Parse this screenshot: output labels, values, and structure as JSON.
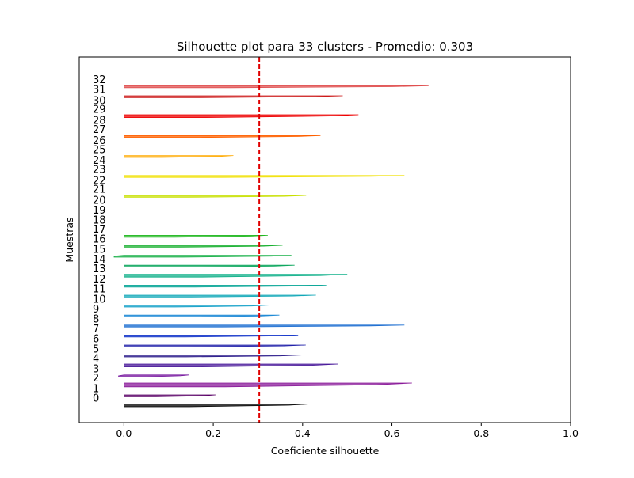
{
  "chart_data": {
    "type": "bar",
    "title": "Silhouette plot para 33 clusters - Promedio: 0.303",
    "xlabel": "Coeficiente silhouette",
    "ylabel": "Muestras",
    "xlim": [
      -0.1,
      1.0
    ],
    "xticks": [
      "0.0",
      "0.2",
      "0.4",
      "0.6",
      "0.8",
      "1.0"
    ],
    "grid": false,
    "average_silhouette": 0.303,
    "average_line_color": "#e00000",
    "clusters": [
      {
        "label": "0",
        "size": 3,
        "max": 0.42,
        "min": 0.0,
        "color": "#000000"
      },
      {
        "label": "1",
        "size": 2,
        "max": 0.205,
        "min": 0.0,
        "color": "#5a0066"
      },
      {
        "label": "2",
        "size": 4,
        "max": 0.645,
        "min": 0.0,
        "color": "#8a1a99"
      },
      {
        "label": "3",
        "size": 2,
        "max": 0.145,
        "min": -0.012,
        "color": "#7b1fa2"
      },
      {
        "label": "4",
        "size": 3,
        "max": 0.48,
        "min": 0.0,
        "color": "#4a1a9a"
      },
      {
        "label": "5",
        "size": 2,
        "max": 0.398,
        "min": 0.0,
        "color": "#2a1a8a"
      },
      {
        "label": "6",
        "size": 2,
        "max": 0.407,
        "min": 0.0,
        "color": "#2222aa"
      },
      {
        "label": "7",
        "size": 2,
        "max": 0.39,
        "min": 0.0,
        "color": "#1e3ecc"
      },
      {
        "label": "8",
        "size": 2,
        "max": 0.628,
        "min": 0.0,
        "color": "#1f6fd1"
      },
      {
        "label": "9",
        "size": 2,
        "max": 0.348,
        "min": 0.0,
        "color": "#1f8ad6"
      },
      {
        "label": "10",
        "size": 2,
        "max": 0.325,
        "min": 0.0,
        "color": "#13a0c8"
      },
      {
        "label": "11",
        "size": 2,
        "max": 0.43,
        "min": 0.0,
        "color": "#12a8b8"
      },
      {
        "label": "12",
        "size": 2,
        "max": 0.453,
        "min": 0.0,
        "color": "#10a89a"
      },
      {
        "label": "13",
        "size": 3,
        "max": 0.5,
        "min": 0.0,
        "color": "#10b08a"
      },
      {
        "label": "14",
        "size": 2,
        "max": 0.382,
        "min": 0.0,
        "color": "#10a860"
      },
      {
        "label": "15",
        "size": 2,
        "max": 0.375,
        "min": -0.022,
        "color": "#18b048"
      },
      {
        "label": "16",
        "size": 2,
        "max": 0.355,
        "min": 0.0,
        "color": "#18b030"
      },
      {
        "label": "17",
        "size": 2,
        "max": 0.322,
        "min": 0.0,
        "color": "#20b820"
      },
      {
        "label": "18",
        "size": 0,
        "max": 0.0,
        "min": 0.0,
        "color": "#66cc00"
      },
      {
        "label": "19",
        "size": 0,
        "max": 0.0,
        "min": 0.0,
        "color": "#88d400"
      },
      {
        "label": "20",
        "size": 0,
        "max": 0.0,
        "min": 0.0,
        "color": "#aadd00"
      },
      {
        "label": "21",
        "size": 2,
        "max": 0.408,
        "min": 0.0,
        "color": "#c8e000"
      },
      {
        "label": "22",
        "size": 0,
        "max": 0.0,
        "min": 0.0,
        "color": "#dde000"
      },
      {
        "label": "23",
        "size": 2,
        "max": 0.628,
        "min": 0.0,
        "color": "#f0e000"
      },
      {
        "label": "24",
        "size": 0,
        "max": 0.0,
        "min": 0.0,
        "color": "#f8d000"
      },
      {
        "label": "25",
        "size": 2,
        "max": 0.245,
        "min": 0.0,
        "color": "#ffaa00"
      },
      {
        "label": "26",
        "size": 0,
        "max": 0.0,
        "min": 0.0,
        "color": "#ff8800"
      },
      {
        "label": "27",
        "size": 2,
        "max": 0.44,
        "min": 0.0,
        "color": "#ff6000"
      },
      {
        "label": "28",
        "size": 0,
        "max": 0.0,
        "min": 0.0,
        "color": "#ff3000"
      },
      {
        "label": "29",
        "size": 3,
        "max": 0.525,
        "min": 0.0,
        "color": "#ee0000"
      },
      {
        "label": "30",
        "size": 0,
        "max": 0.0,
        "min": 0.0,
        "color": "#dd1010"
      },
      {
        "label": "31",
        "size": 2,
        "max": 0.49,
        "min": 0.0,
        "color": "#cc1a1a"
      },
      {
        "label": "32",
        "size": 2,
        "max": 0.682,
        "min": 0.0,
        "color": "#e05050"
      }
    ]
  }
}
